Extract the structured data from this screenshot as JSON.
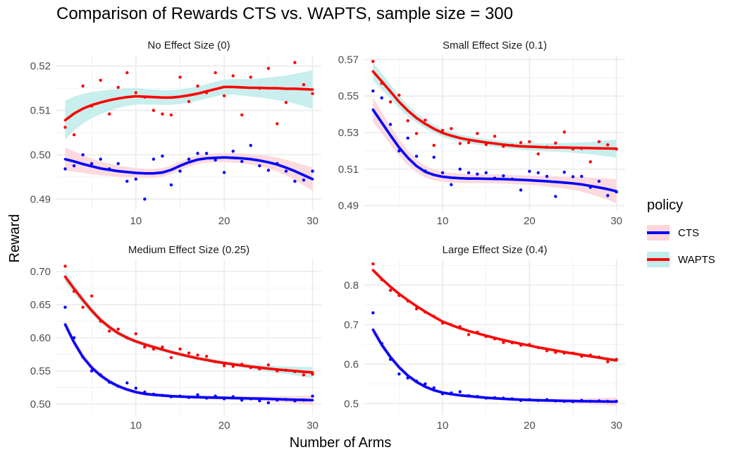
{
  "title": "Comparison of Rewards CTS vs. WAPTS, sample size = 300",
  "chart_data": {
    "type": "scatter",
    "xlabel": "Number of Arms",
    "ylabel": "Reward",
    "legend": {
      "title": "policy",
      "placement": "right",
      "items": [
        {
          "name": "CTS",
          "line_color": "#0000ff",
          "fill_color": "#fcd6da"
        },
        {
          "name": "WAPTS",
          "line_color": "#ff0000",
          "fill_color": "#c2ecec"
        }
      ]
    },
    "x": [
      2,
      3,
      4,
      5,
      6,
      7,
      8,
      9,
      10,
      11,
      12,
      13,
      14,
      15,
      16,
      17,
      18,
      19,
      20,
      21,
      22,
      23,
      24,
      25,
      26,
      27,
      28,
      29,
      30
    ],
    "xlim": [
      1,
      31
    ],
    "xticks": [
      10,
      20,
      30
    ],
    "panels": [
      {
        "title": "No Effect Size (0)",
        "ylim": [
          0.4875,
          0.5225
        ],
        "yticks": [
          0.49,
          0.5,
          0.51,
          0.52
        ],
        "tick_decimals": 2,
        "series": [
          {
            "name": "CTS",
            "color": "#0000ff",
            "points": [
              0.4968,
              0.4975,
              0.5,
              0.498,
              0.499,
              0.4968,
              0.498,
              0.494,
              0.4945,
              0.49,
              0.499,
              0.4997,
              0.4932,
              0.4963,
              0.499,
              0.5003,
              0.5003,
              0.4988,
              0.496,
              0.5008,
              0.4985,
              0.5021,
              0.4975,
              0.4965,
              0.498,
              0.4963,
              0.494,
              0.4943,
              0.4963
            ],
            "smooth": [
              0.499,
              0.4985,
              0.4979,
              0.4974,
              0.4969,
              0.4966,
              0.4963,
              0.4961,
              0.4959,
              0.4958,
              0.4958,
              0.496,
              0.4966,
              0.4975,
              0.4983,
              0.4989,
              0.4992,
              0.4993,
              0.4994,
              0.4993,
              0.4992,
              0.499,
              0.4987,
              0.4983,
              0.4978,
              0.4971,
              0.4963,
              0.4954,
              0.4945
            ]
          },
          {
            "name": "WAPTS",
            "color": "#ff0000",
            "points": [
              0.5062,
              0.5045,
              0.5155,
              0.511,
              0.5168,
              0.5092,
              0.5152,
              0.5185,
              0.514,
              0.513,
              0.51,
              0.5092,
              0.509,
              0.5175,
              0.512,
              0.5155,
              0.514,
              0.5185,
              0.5133,
              0.5178,
              0.509,
              0.5175,
              0.515,
              0.5195,
              0.507,
              0.5118,
              0.5208,
              0.5158,
              0.5138
            ],
            "smooth": [
              0.5078,
              0.5093,
              0.5104,
              0.5112,
              0.5118,
              0.5123,
              0.5127,
              0.513,
              0.5132,
              0.5131,
              0.513,
              0.5129,
              0.5129,
              0.5131,
              0.5134,
              0.5138,
              0.5143,
              0.5148,
              0.5153,
              0.5153,
              0.5152,
              0.5151,
              0.5151,
              0.515,
              0.515,
              0.5149,
              0.5149,
              0.5148,
              0.5147
            ]
          }
        ]
      },
      {
        "title": "Small Effect Size (0.1)",
        "ylim": [
          0.4875,
          0.5725
        ],
        "yticks": [
          0.49,
          0.51,
          0.53,
          0.55,
          0.57
        ],
        "tick_decimals": 2,
        "series": [
          {
            "name": "CTS",
            "color": "#0000ff",
            "points": [
              0.5528,
              0.549,
              0.5345,
              0.52,
              0.527,
              0.517,
              0.509,
              0.5165,
              0.508,
              0.5015,
              0.51,
              0.508,
              0.5073,
              0.508,
              0.505,
              0.5063,
              0.5045,
              0.4985,
              0.5088,
              0.508,
              0.506,
              0.495,
              0.5083,
              0.5058,
              0.506,
              0.5,
              0.5033,
              0.4955,
              0.4975
            ],
            "smooth": [
              0.5425,
              0.5355,
              0.5285,
              0.5218,
              0.5162,
              0.5117,
              0.5085,
              0.5068,
              0.5058,
              0.5053,
              0.505,
              0.5048,
              0.5048,
              0.5047,
              0.5046,
              0.5045,
              0.5043,
              0.5041,
              0.5039,
              0.5036,
              0.5033,
              0.503,
              0.5026,
              0.5022,
              0.5016,
              0.5008,
              0.4999,
              0.499,
              0.4978
            ]
          },
          {
            "name": "WAPTS",
            "color": "#ff0000",
            "points": [
              0.569,
              0.557,
              0.5468,
              0.5505,
              0.5365,
              0.5295,
              0.5368,
              0.523,
              0.5312,
              0.5322,
              0.524,
              0.5245,
              0.5295,
              0.5235,
              0.528,
              0.5225,
              0.523,
              0.5245,
              0.525,
              0.5183,
              0.522,
              0.5243,
              0.5303,
              0.521,
              0.5213,
              0.514,
              0.525,
              0.5233,
              0.521
            ],
            "smooth": [
              0.5635,
              0.558,
              0.5525,
              0.5468,
              0.542,
              0.538,
              0.5348,
              0.5321,
              0.5298,
              0.5283,
              0.527,
              0.5261,
              0.5253,
              0.5246,
              0.524,
              0.5234,
              0.5229,
              0.5225,
              0.5223,
              0.5221,
              0.5219,
              0.5218,
              0.5218,
              0.5217,
              0.5216,
              0.5215,
              0.5214,
              0.5213,
              0.5212
            ]
          }
        ]
      },
      {
        "title": "Medium Effect Size (0.25)",
        "ylim": [
          0.484,
          0.718
        ],
        "yticks": [
          0.5,
          0.55,
          0.6,
          0.65,
          0.7
        ],
        "tick_decimals": 2,
        "series": [
          {
            "name": "CTS",
            "color": "#0000ff",
            "points": [
              0.646,
              0.6,
              0.571,
              0.55,
              0.544,
              0.533,
              0.527,
              0.532,
              0.524,
              0.518,
              0.515,
              0.513,
              0.511,
              0.512,
              0.51,
              0.514,
              0.509,
              0.512,
              0.508,
              0.511,
              0.506,
              0.508,
              0.505,
              0.502,
              0.506,
              0.507,
              0.505,
              0.506,
              0.512
            ],
            "smooth": [
              0.62,
              0.593,
              0.571,
              0.555,
              0.543,
              0.534,
              0.527,
              0.522,
              0.518,
              0.5155,
              0.514,
              0.513,
              0.512,
              0.5113,
              0.5108,
              0.5104,
              0.51,
              0.5097,
              0.5094,
              0.5091,
              0.5088,
              0.5085,
              0.5082,
              0.5078,
              0.5074,
              0.507,
              0.5066,
              0.5062,
              0.5058
            ]
          },
          {
            "name": "WAPTS",
            "color": "#ff0000",
            "points": [
              0.708,
              0.67,
              0.646,
              0.663,
              0.625,
              0.61,
              0.613,
              0.6,
              0.606,
              0.586,
              0.583,
              0.586,
              0.57,
              0.583,
              0.577,
              0.574,
              0.572,
              0.564,
              0.558,
              0.557,
              0.56,
              0.555,
              0.553,
              0.559,
              0.55,
              0.551,
              0.549,
              0.544,
              0.545
            ],
            "smooth": [
              0.692,
              0.674,
              0.657,
              0.641,
              0.627,
              0.616,
              0.607,
              0.6,
              0.5945,
              0.59,
              0.586,
              0.5822,
              0.5785,
              0.575,
              0.572,
              0.569,
              0.5665,
              0.564,
              0.562,
              0.56,
              0.5582,
              0.5565,
              0.555,
              0.5535,
              0.5522,
              0.551,
              0.5498,
              0.5487,
              0.5477
            ]
          }
        ]
      },
      {
        "title": "Large Effect Size (0.4)",
        "ylim": [
          0.472,
          0.865
        ],
        "yticks": [
          0.5,
          0.6,
          0.7,
          0.8
        ],
        "tick_decimals": 1,
        "series": [
          {
            "name": "CTS",
            "color": "#0000ff",
            "points": [
              0.73,
              0.652,
              0.612,
              0.575,
              0.565,
              0.557,
              0.55,
              0.54,
              0.525,
              0.527,
              0.53,
              0.52,
              0.518,
              0.514,
              0.515,
              0.514,
              0.512,
              0.508,
              0.51,
              0.508,
              0.51,
              0.507,
              0.506,
              0.505,
              0.508,
              0.506,
              0.507,
              0.506,
              0.506
            ],
            "smooth": [
              0.687,
              0.649,
              0.618,
              0.592,
              0.571,
              0.555,
              0.543,
              0.534,
              0.528,
              0.524,
              0.521,
              0.519,
              0.517,
              0.515,
              0.5135,
              0.5122,
              0.511,
              0.51,
              0.5092,
              0.5085,
              0.508,
              0.5075,
              0.507,
              0.5066,
              0.5062,
              0.5059,
              0.5056,
              0.5053,
              0.505
            ]
          },
          {
            "name": "WAPTS",
            "color": "#ff0000",
            "points": [
              0.854,
              0.814,
              0.787,
              0.774,
              0.76,
              0.74,
              0.732,
              0.721,
              0.704,
              0.7,
              0.695,
              0.675,
              0.681,
              0.67,
              0.664,
              0.655,
              0.654,
              0.648,
              0.65,
              0.642,
              0.634,
              0.63,
              0.628,
              0.628,
              0.62,
              0.623,
              0.618,
              0.606,
              0.612
            ],
            "smooth": [
              0.838,
              0.816,
              0.796,
              0.778,
              0.762,
              0.747,
              0.733,
              0.72,
              0.708,
              0.699,
              0.691,
              0.684,
              0.678,
              0.672,
              0.6665,
              0.661,
              0.656,
              0.6515,
              0.647,
              0.6425,
              0.6385,
              0.6345,
              0.6305,
              0.627,
              0.6235,
              0.62,
              0.6165,
              0.613,
              0.6095
            ]
          }
        ]
      }
    ]
  }
}
